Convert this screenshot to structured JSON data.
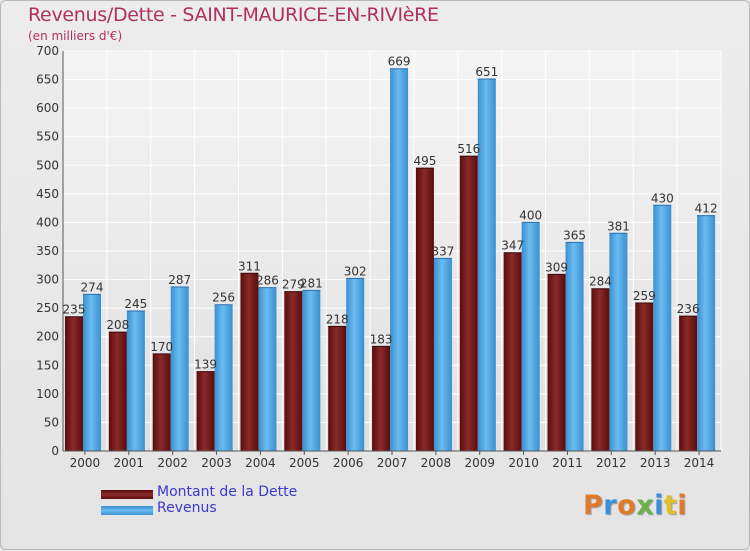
{
  "title": "Revenus/Dette - SAINT-MAURICE-EN-RIVIèRE",
  "subtitle": "(en milliers d'€)",
  "chart_data": {
    "type": "bar",
    "categories": [
      "2000",
      "2001",
      "2002",
      "2003",
      "2004",
      "2005",
      "2006",
      "2007",
      "2008",
      "2009",
      "2010",
      "2011",
      "2012",
      "2013",
      "2014"
    ],
    "series": [
      {
        "name": "Montant de la Dette",
        "color": "#7a1a1a",
        "values": [
          235,
          208,
          170,
          139,
          311,
          279,
          218,
          183,
          495,
          516,
          347,
          309,
          284,
          259,
          236
        ]
      },
      {
        "name": "Revenus",
        "color": "#4aa3e0",
        "values": [
          274,
          245,
          287,
          256,
          286,
          281,
          302,
          669,
          337,
          651,
          400,
          365,
          381,
          430,
          412
        ]
      }
    ],
    "ylim": [
      0,
      700
    ],
    "yticks": [
      0,
      50,
      100,
      150,
      200,
      250,
      300,
      350,
      400,
      450,
      500,
      550,
      600,
      650,
      700
    ],
    "grid": true,
    "legend_position": "bottom-left",
    "xlabel": "",
    "ylabel": ""
  },
  "legend": {
    "items": [
      {
        "label": "Montant de la Dette",
        "color": "#7a1a1a"
      },
      {
        "label": "Revenus",
        "color": "#4aa3e0"
      }
    ]
  },
  "logo": {
    "text": "Proxiti",
    "letter_colors": [
      "#e07a2a",
      "#3a8fd8",
      "#e07a2a",
      "#6ab04c",
      "#3a8fd8",
      "#e0c02a",
      "#e07a2a"
    ]
  }
}
